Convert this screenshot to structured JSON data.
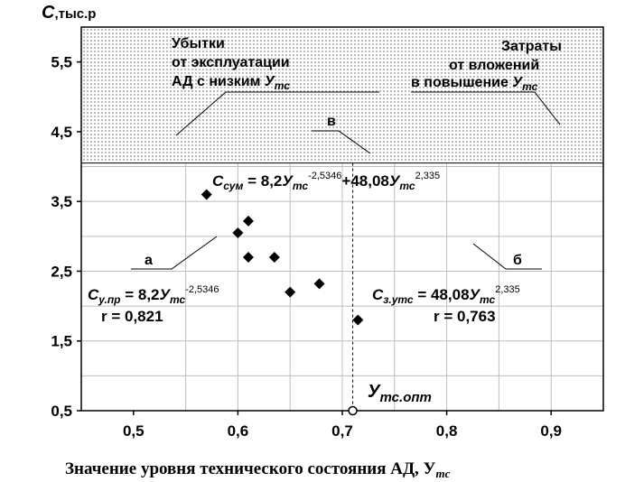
{
  "chart_data": {
    "type": "line",
    "xlabel": "Значение уровня технического состояния АД, У",
    "xlabel_sub": "тс",
    "ylabel": "С",
    "ylabel_unit": ",тыс.р",
    "xlim": [
      0.45,
      0.95
    ],
    "ylim": [
      0.5,
      6.0
    ],
    "xticks": [
      0.5,
      0.6,
      0.7,
      0.8,
      0.9
    ],
    "xtick_labels": [
      "0,5",
      "0,6",
      "0,7",
      "0,8",
      "0,9"
    ],
    "yticks": [
      0.5,
      1.5,
      2.5,
      3.5,
      4.5,
      5.5
    ],
    "ytick_labels": [
      "0,5",
      "1,5",
      "2,5",
      "3,5",
      "4,5",
      "5,5"
    ],
    "grid": true,
    "threshold_y": 4.05,
    "optimum_x": 0.71,
    "curves": [
      {
        "id": "a",
        "label": "а",
        "coef": 8.2,
        "exp": -2.5346,
        "fn": "8.2*x^-2.5346"
      },
      {
        "id": "b",
        "label": "б",
        "coef": 48.08,
        "exp": 2.335,
        "fn": "48.08*x^2.335"
      },
      {
        "id": "sum",
        "label": "в",
        "fn": "8.2*x^-2.5346 + 48.08*x^2.335"
      }
    ],
    "points": [
      {
        "x": 0.57,
        "y": 3.6
      },
      {
        "x": 0.6,
        "y": 3.05
      },
      {
        "x": 0.61,
        "y": 3.22
      },
      {
        "x": 0.61,
        "y": 2.7
      },
      {
        "x": 0.635,
        "y": 2.7
      },
      {
        "x": 0.65,
        "y": 2.2
      },
      {
        "x": 0.678,
        "y": 2.32
      },
      {
        "x": 0.715,
        "y": 1.8
      }
    ]
  },
  "annotations": {
    "losses_line1": "Убытки",
    "losses_line2": "от эксплуатации",
    "losses_line3_pre": "АД с низким ",
    "losses_line3_sym": "У",
    "losses_line3_sub": "тс",
    "costs_line1": "Затраты",
    "costs_line2": "от вложений",
    "costs_line3_pre": "в повышение ",
    "costs_line3_sym": "У",
    "costs_line3_sub": "тс",
    "label_a": "а",
    "label_b": "б",
    "label_v": "в",
    "formula_sum_C": "С",
    "formula_sum_sub": "сум",
    "formula_sum_mid1": " = 8,2",
    "formula_sum_U1": "У",
    "formula_sum_tc1": "тс",
    "formula_sum_exp1": "-2,5346",
    "formula_sum_mid2": "+48,08",
    "formula_sum_U2": "У",
    "formula_sum_tc2": "тс",
    "formula_sum_exp2": "2,335",
    "formula_a_C": "С",
    "formula_a_sub": "у.пр",
    "formula_a_mid": " = 8,2",
    "formula_a_U": "У",
    "formula_a_tc": "тс",
    "formula_a_exp": "-2,5346",
    "r_a": "r = 0,821",
    "formula_b_C": "С",
    "formula_b_sub": "з.утс",
    "formula_b_mid": " = 48,08",
    "formula_b_U": "У",
    "formula_b_tc": "тс",
    "formula_b_exp": "2,335",
    "r_b": "r = 0,763",
    "opt_U": "У",
    "opt_sub": "тс.опт"
  }
}
